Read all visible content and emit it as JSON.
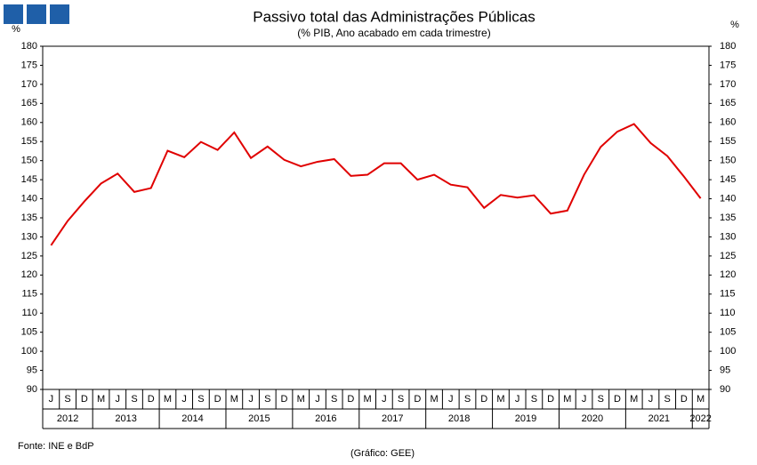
{
  "chart_data": {
    "type": "line",
    "title": "Passivo total das Administrações Públicas",
    "subtitle": "(% PIB, Ano acabado em cada trimestre)",
    "ylabel": "%",
    "y2label": "%",
    "source": "Fonte: INE e BdP",
    "credit": "(Gráfico: GEE)",
    "categories": [
      "J",
      "S",
      "D",
      "M",
      "J",
      "S",
      "D",
      "M",
      "J",
      "S",
      "D",
      "M",
      "J",
      "S",
      "D",
      "M",
      "J",
      "S",
      "D",
      "M",
      "J",
      "S",
      "D",
      "M",
      "J",
      "S",
      "D",
      "M",
      "J",
      "S",
      "D",
      "M",
      "J",
      "S",
      "D",
      "M",
      "J",
      "S",
      "D",
      "M"
    ],
    "years": [
      "2012",
      "2013",
      "2014",
      "2015",
      "2016",
      "2017",
      "2018",
      "2019",
      "2020",
      "2021",
      "2022"
    ],
    "series": [
      {
        "name": "Passivo total",
        "color": "#e00000",
        "values": [
          127.8,
          134.2,
          139.3,
          144.0,
          146.6,
          141.8,
          142.8,
          152.6,
          150.9,
          154.9,
          152.8,
          157.4,
          150.7,
          153.7,
          150.2,
          148.5,
          149.7,
          150.4,
          146.0,
          146.3,
          149.3,
          149.3,
          145.0,
          146.3,
          143.7,
          143.0,
          137.6,
          141.0,
          140.3,
          140.9,
          136.1,
          136.9,
          146.3,
          153.6,
          157.6,
          159.6,
          154.6,
          151.2,
          145.8,
          140.1
        ]
      }
    ],
    "ylim": [
      90,
      180
    ],
    "yticks": [
      90,
      95,
      100,
      105,
      110,
      115,
      120,
      125,
      130,
      135,
      140,
      145,
      150,
      155,
      160,
      165,
      170,
      175,
      180
    ],
    "y2lim": [
      90,
      180
    ],
    "y2ticks": [
      90,
      95,
      100,
      105,
      110,
      115,
      120,
      125,
      130,
      135,
      140,
      145,
      150,
      155,
      160,
      165,
      170,
      175,
      180
    ],
    "grid": false
  }
}
